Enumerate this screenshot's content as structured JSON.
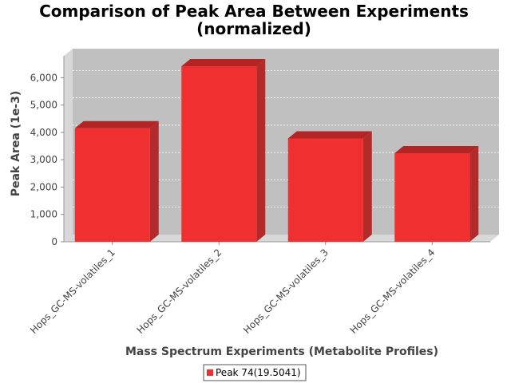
{
  "chart_data": {
    "type": "bar",
    "title": "Comparison of Peak Area Between Experiments",
    "subtitle": "(normalized)",
    "xlabel": "Mass Spectrum Experiments (Metabolite Profiles)",
    "ylabel": "Peak Area (1e-3)",
    "categories": [
      "Hops_GC-MS-volatiles_1",
      "Hops_GC-MS-volatiles_2",
      "Hops_GC-MS-volatiles_3",
      "Hops_GC-MS-volatiles_4"
    ],
    "series": [
      {
        "name": "Peak 74(19.5041)",
        "values": [
          4150,
          6420,
          3780,
          3240
        ]
      }
    ],
    "ylim": [
      0,
      6800
    ],
    "yticks": [
      0,
      1000,
      2000,
      3000,
      4000,
      5000,
      6000
    ],
    "ytick_labels": [
      "0",
      "1,000",
      "2,000",
      "3,000",
      "4,000",
      "5,000",
      "6,000"
    ],
    "grid": true,
    "legend": "bottom-center",
    "colors": {
      "bar_front": "#f03030",
      "bar_top": "#b32525",
      "bar_side": "#b32a2a",
      "plot_background": "#c0c0c0",
      "plot_wall": "#d8d8d8"
    }
  }
}
